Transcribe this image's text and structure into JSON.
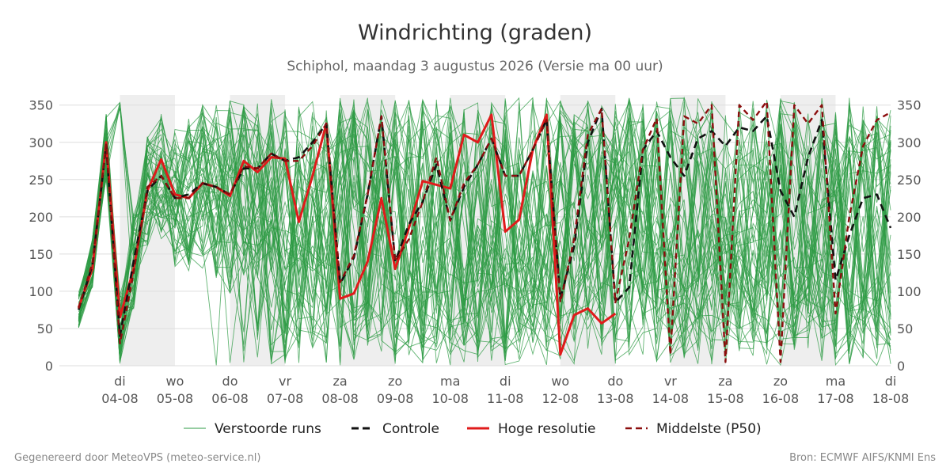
{
  "chart_data": {
    "type": "line",
    "title": "Windrichting (graden)",
    "subtitle": "Schiphol, maandag  3 augustus 2026 (Versie ma 00 uur)",
    "xlim": [
      3.3,
      18.0
    ],
    "ylim": [
      0,
      360
    ],
    "y_ticks": [
      0,
      50,
      100,
      150,
      200,
      250,
      300,
      350
    ],
    "grid": true,
    "legend_position": "bottom",
    "x_ticks": [
      {
        "x": 4.0,
        "day": "di",
        "date": "04-08"
      },
      {
        "x": 5.0,
        "day": "wo",
        "date": "05-08"
      },
      {
        "x": 6.0,
        "day": "do",
        "date": "06-08"
      },
      {
        "x": 7.0,
        "day": "vr",
        "date": "07-08"
      },
      {
        "x": 8.0,
        "day": "za",
        "date": "08-08"
      },
      {
        "x": 9.0,
        "day": "zo",
        "date": "09-08"
      },
      {
        "x": 10.0,
        "day": "ma",
        "date": "10-08"
      },
      {
        "x": 11.0,
        "day": "di",
        "date": "11-08"
      },
      {
        "x": 12.0,
        "day": "wo",
        "date": "12-08"
      },
      {
        "x": 13.0,
        "day": "do",
        "date": "13-08"
      },
      {
        "x": 14.0,
        "day": "vr",
        "date": "14-08"
      },
      {
        "x": 15.0,
        "day": "za",
        "date": "15-08"
      },
      {
        "x": 16.0,
        "day": "zo",
        "date": "16-08"
      },
      {
        "x": 17.0,
        "day": "ma",
        "date": "17-08"
      },
      {
        "x": 18.0,
        "day": "di",
        "date": "18-08"
      }
    ],
    "shaded_bands": [
      [
        4.0,
        5.0
      ],
      [
        6.0,
        7.0
      ],
      [
        8.0,
        9.0
      ],
      [
        10.0,
        11.0
      ],
      [
        12.0,
        13.0
      ],
      [
        14.0,
        15.0
      ],
      [
        16.0,
        17.0
      ]
    ],
    "colors": {
      "ensemble": "#2e9b44",
      "control": "#111111",
      "high_res": "#e01b1b",
      "median": "#8b0d0d",
      "band": "#eeeeee",
      "grid": "#dddddd"
    },
    "ensemble_member_count": 50,
    "series": [
      {
        "name": "Controle",
        "style": "dashed",
        "x": [
          3.25,
          3.5,
          3.75,
          4.0,
          4.25,
          4.5,
          4.75,
          5.0,
          5.25,
          5.5,
          5.75,
          6.0,
          6.25,
          6.5,
          6.75,
          7.0,
          7.25,
          7.5,
          7.75,
          8.0,
          8.25,
          8.5,
          8.75,
          9.0,
          9.25,
          9.5,
          9.75,
          10.0,
          10.25,
          10.5,
          10.75,
          11.0,
          11.25,
          11.5,
          11.75,
          12.0,
          12.25,
          12.5,
          12.75,
          13.0,
          13.25,
          13.5,
          13.75,
          14.0,
          14.25,
          14.5,
          14.75,
          15.0,
          15.25,
          15.5,
          15.75,
          16.0,
          16.25,
          16.5,
          16.75,
          17.0,
          17.25,
          17.5,
          17.75,
          18.0
        ],
        "values": [
          75,
          135,
          295,
          40,
          140,
          235,
          255,
          225,
          230,
          245,
          240,
          230,
          265,
          265,
          285,
          275,
          280,
          300,
          325,
          110,
          145,
          230,
          335,
          140,
          190,
          220,
          270,
          195,
          240,
          270,
          305,
          255,
          255,
          290,
          330,
          90,
          160,
          300,
          345,
          85,
          105,
          290,
          315,
          280,
          255,
          305,
          315,
          295,
          320,
          315,
          335,
          235,
          200,
          280,
          330,
          115,
          175,
          225,
          230,
          185
        ]
      },
      {
        "name": "Hoge resolutie",
        "style": "solid",
        "x": [
          3.25,
          3.5,
          3.75,
          4.0,
          4.25,
          4.5,
          4.75,
          5.0,
          5.25,
          5.5,
          5.75,
          6.0,
          6.25,
          6.5,
          6.75,
          7.0,
          7.25,
          7.5,
          7.75,
          8.0,
          8.25,
          8.5,
          8.75,
          9.0,
          9.25,
          9.5,
          9.75,
          10.0,
          10.25,
          10.5,
          10.75,
          11.0,
          11.25,
          11.5,
          11.75,
          12.0,
          12.25,
          12.5,
          12.75,
          13.0
        ],
        "values": [
          78,
          130,
          300,
          65,
          130,
          235,
          277,
          230,
          225,
          245,
          240,
          228,
          275,
          260,
          280,
          278,
          193,
          255,
          325,
          90,
          97,
          140,
          225,
          130,
          185,
          248,
          243,
          238,
          310,
          300,
          337,
          180,
          196,
          290,
          337,
          15,
          68,
          77,
          57,
          70
        ]
      },
      {
        "name": "Middelste (P50)",
        "style": "dashed",
        "x": [
          3.25,
          3.5,
          3.75,
          4.0,
          4.25,
          4.5,
          4.75,
          5.0,
          5.25,
          5.5,
          5.75,
          6.0,
          6.25,
          6.5,
          6.75,
          7.0,
          7.25,
          7.5,
          7.75,
          8.0,
          8.25,
          8.5,
          8.75,
          9.0,
          9.25,
          9.5,
          9.75,
          10.0,
          10.25,
          10.5,
          10.75,
          11.0,
          11.25,
          11.5,
          11.75,
          12.0,
          12.25,
          12.5,
          12.75,
          13.0,
          13.25,
          13.5,
          13.75,
          14.0,
          14.25,
          14.5,
          14.75,
          15.0,
          15.25,
          15.5,
          15.75,
          16.0,
          16.25,
          16.5,
          16.75,
          17.0,
          17.25,
          17.5,
          17.75,
          18.0
        ],
        "values": [
          77,
          138,
          297,
          30,
          125,
          240,
          255,
          225,
          225,
          245,
          240,
          230,
          268,
          265,
          285,
          275,
          275,
          295,
          325,
          112,
          148,
          230,
          335,
          140,
          170,
          220,
          280,
          195,
          245,
          270,
          305,
          255,
          255,
          290,
          330,
          85,
          170,
          310,
          345,
          85,
          170,
          290,
          332,
          15,
          335,
          325,
          350,
          5,
          350,
          330,
          355,
          5,
          350,
          325,
          350,
          70,
          200,
          295,
          330,
          340
        ]
      }
    ],
    "legend": [
      {
        "key": "ensemble",
        "label": "Verstoorde runs"
      },
      {
        "key": "control",
        "label": "Controle"
      },
      {
        "key": "high_res",
        "label": "Hoge resolutie"
      },
      {
        "key": "median",
        "label": "Middelste (P50)"
      }
    ]
  },
  "footer": {
    "left": "Gegenereerd door MeteoVPS (meteo-service.nl)",
    "right": "Bron: ECMWF AIFS/KNMI Ens"
  }
}
